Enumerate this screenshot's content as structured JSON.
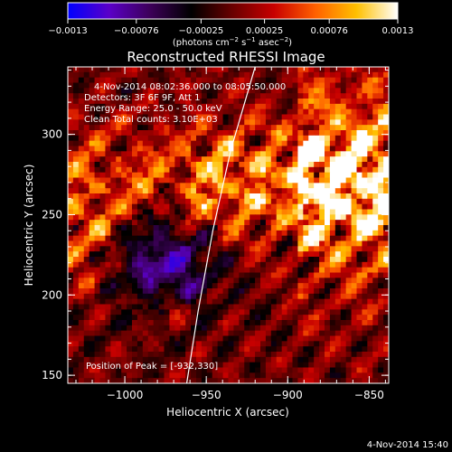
{
  "chart_data": {
    "type": "heatmap",
    "title": "Reconstructed RHESSI Image",
    "xlabel": "Heliocentric X (arcsec)",
    "ylabel": "Heliocentric Y (arcsec)",
    "xlim": [
      -1035,
      -838
    ],
    "ylim": [
      145,
      342
    ],
    "x_ticks": [
      -1000,
      -950,
      -900,
      -850
    ],
    "y_ticks": [
      150,
      200,
      250,
      300
    ],
    "x_tick_labels": [
      "−1000",
      "−950",
      "−900",
      "−850"
    ],
    "y_tick_labels": [
      "150",
      "200",
      "250",
      "300"
    ],
    "colorbar": {
      "range": [
        -0.0013,
        0.0013
      ],
      "ticks": [
        -0.0013,
        -0.00076,
        -0.00025,
        0.00025,
        0.00076,
        0.0013
      ],
      "tick_labels": [
        "−0.0013",
        "−0.00076",
        "−0.00025",
        "0.00025",
        "0.00076",
        "0.0013"
      ],
      "units_label": "(photons cm",
      "units_exp1": "−2",
      "units_mid": " s",
      "units_exp2": "−1",
      "units_end": " asec",
      "units_exp3": "−2",
      "units_close": ")",
      "colors": [
        "#0000ff",
        "#5a00c8",
        "#3c0058",
        "#000000",
        "#6a0000",
        "#c80000",
        "#ff6000",
        "#ffc000",
        "#ffffff"
      ]
    },
    "info_lines": [
      "4-Nov-2014 08:02:36.000 to 08:05:50.000",
      "Detectors: 3F 6F 9F, Att 1",
      "Energy Range: 25.0 - 50.0 keV",
      "Clean   Total counts: 3.10E+03"
    ],
    "peak_label": "Position of Peak = [-932,330]",
    "limb_curve": [
      [
        -962,
        145
      ],
      [
        -955,
        190
      ],
      [
        -946,
        240
      ],
      [
        -935,
        290
      ],
      [
        -920,
        342
      ]
    ],
    "grid": false
  },
  "footer": {
    "timestamp": "4-Nov-2014 15:40"
  }
}
